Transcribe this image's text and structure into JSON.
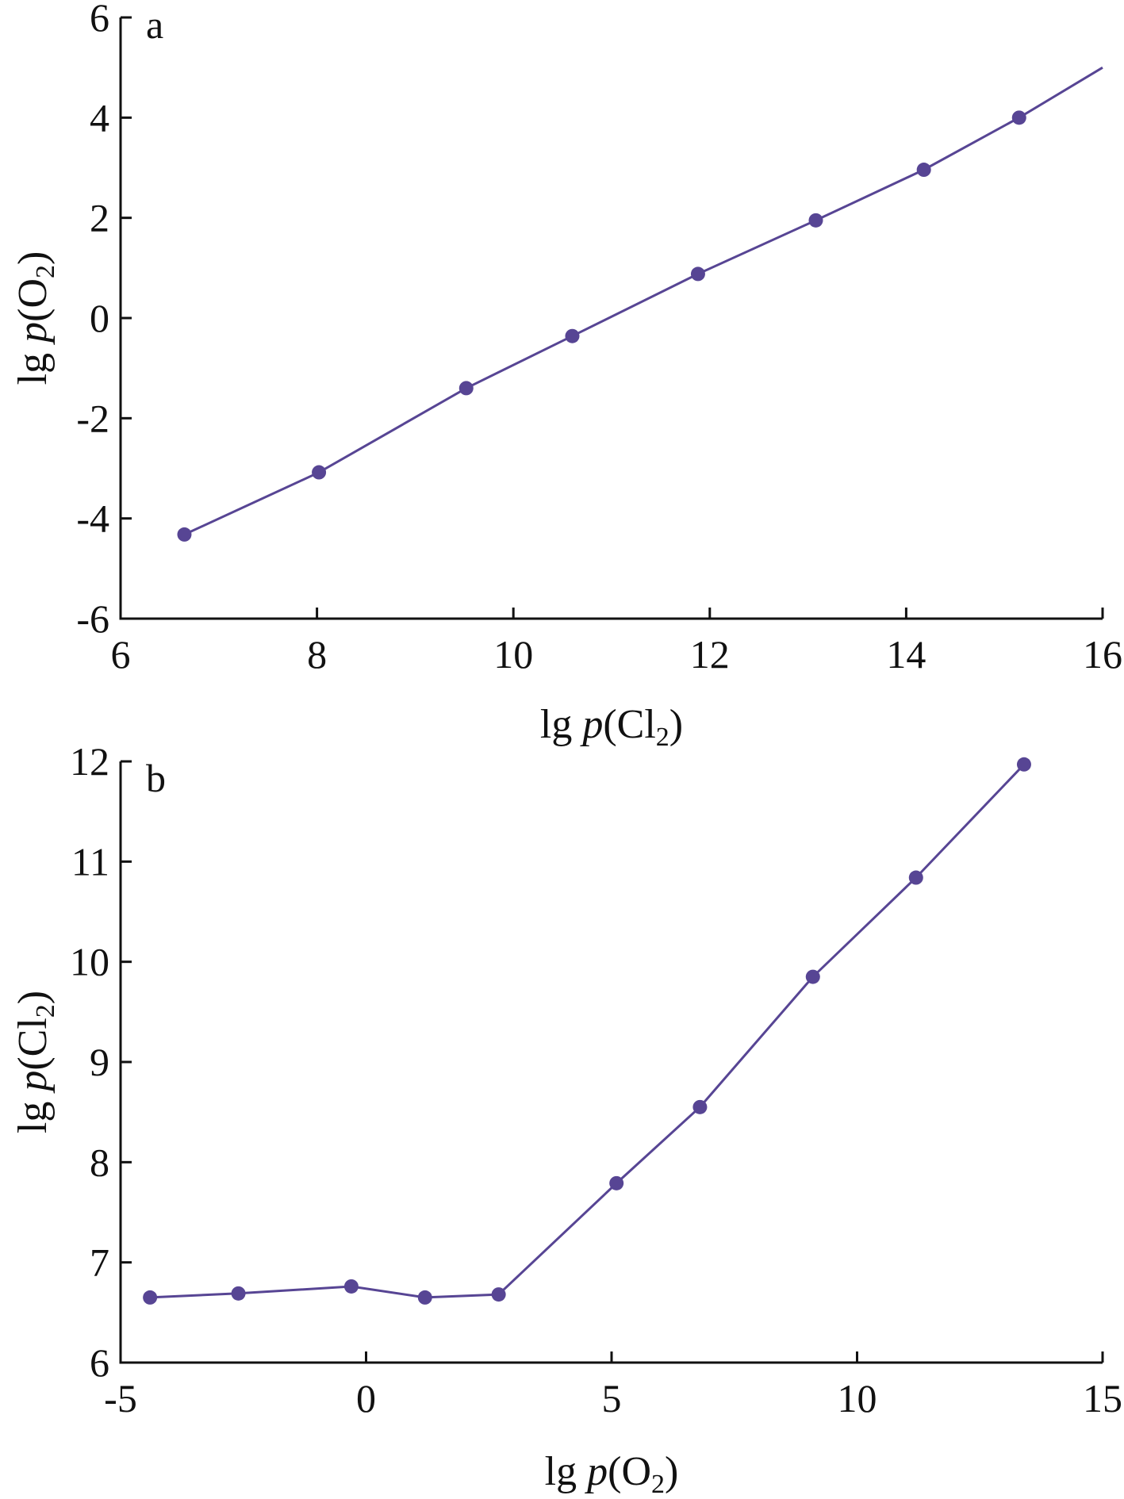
{
  "chart_data": [
    {
      "type": "line",
      "panel_label": "a",
      "xlabel": {
        "prefix": "lg ",
        "italic": "p",
        "open": "(Cl",
        "sub": "2",
        "close": ")"
      },
      "ylabel": {
        "prefix": "lg ",
        "italic": "p",
        "open": "(O",
        "sub": "2",
        "close": ")"
      },
      "xlim": [
        6,
        16
      ],
      "ylim": [
        -6,
        6
      ],
      "xticks": [
        6,
        8,
        10,
        12,
        14,
        16
      ],
      "yticks": [
        -6,
        -4,
        -2,
        0,
        2,
        4,
        6
      ],
      "grid": false,
      "color": "#574594",
      "series": [
        {
          "x": [
            6.65,
            8.02,
            9.52,
            10.6,
            11.88,
            13.08,
            14.18,
            15.15
          ],
          "y": [
            -4.32,
            -3.08,
            -1.4,
            -0.36,
            0.88,
            1.95,
            2.96,
            4.0
          ]
        }
      ],
      "line_extension": {
        "x": 16.0,
        "y": 5.0
      }
    },
    {
      "type": "line",
      "panel_label": "b",
      "xlabel": {
        "prefix": "lg ",
        "italic": "p",
        "open": "(O",
        "sub": "2",
        "close": ")"
      },
      "ylabel": {
        "prefix": "lg ",
        "italic": "p",
        "open": "(Cl",
        "sub": "2",
        "close": ")"
      },
      "xlim": [
        -5,
        15
      ],
      "ylim": [
        6,
        12
      ],
      "xticks": [
        -5,
        0,
        5,
        10,
        15
      ],
      "yticks": [
        6,
        7,
        8,
        9,
        10,
        11,
        12
      ],
      "grid": false,
      "color": "#574594",
      "series": [
        {
          "x": [
            -4.4,
            -2.6,
            -0.3,
            1.2,
            2.7,
            5.1,
            6.8,
            9.1,
            11.2,
            13.4
          ],
          "y": [
            6.65,
            6.69,
            6.76,
            6.65,
            6.68,
            7.79,
            8.55,
            9.85,
            10.84,
            11.97
          ]
        }
      ]
    }
  ]
}
